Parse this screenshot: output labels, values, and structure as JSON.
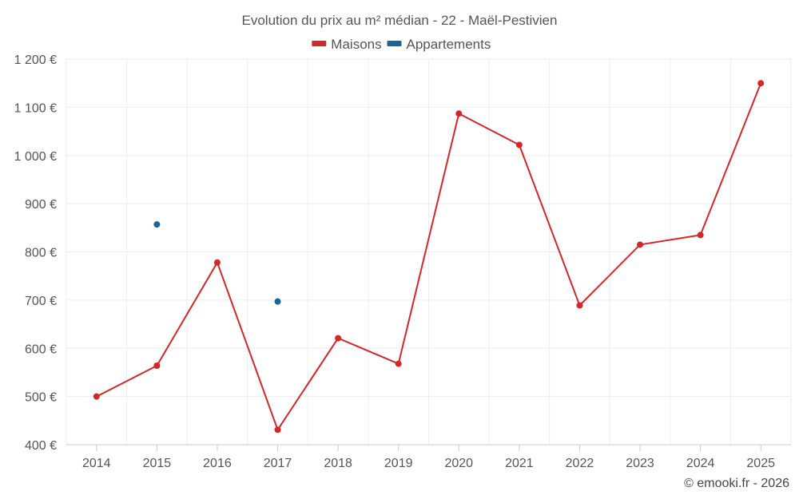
{
  "chart_data": {
    "type": "line",
    "title": "Evolution du prix au m² médian - 22 - Maël-Pestivien",
    "credit": "© emooki.fr - 2026",
    "categories": [
      "2014",
      "2015",
      "2016",
      "2017",
      "2018",
      "2019",
      "2020",
      "2021",
      "2022",
      "2023",
      "2024",
      "2025"
    ],
    "ylim": [
      400,
      1200
    ],
    "yticks": [
      400,
      500,
      600,
      700,
      800,
      900,
      1000,
      1100,
      1200
    ],
    "ytick_labels": [
      "400 €",
      "500 €",
      "600 €",
      "700 €",
      "800 €",
      "900 €",
      "1 000 €",
      "1 100 €",
      "1 200 €"
    ],
    "grid": true,
    "legend_position": "top-center",
    "series": [
      {
        "name": "Maisons",
        "color": "#d62728",
        "values": [
          500,
          564,
          778,
          431,
          621,
          568,
          1087,
          1022,
          689,
          815,
          835,
          1150
        ]
      },
      {
        "name": "Appartements",
        "color": "#1a6496",
        "values": [
          null,
          857,
          null,
          697,
          null,
          null,
          null,
          null,
          null,
          null,
          null,
          null
        ]
      }
    ]
  }
}
